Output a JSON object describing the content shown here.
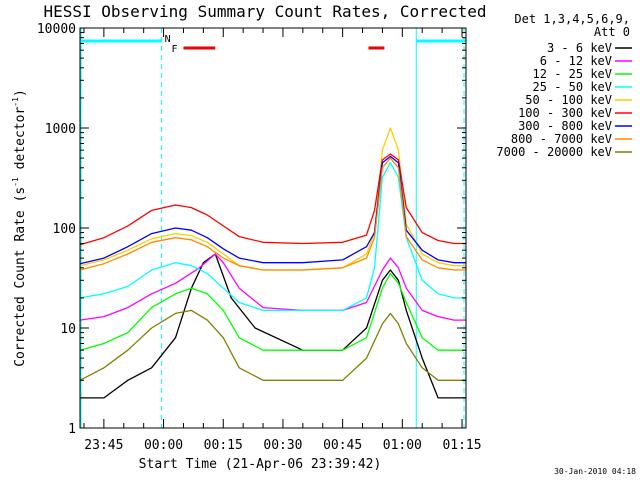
{
  "chart_data": {
    "type": "line",
    "title": "HESSI Observing Summary Count Rates, Corrected",
    "xlabel": "Start Time (21-Apr-06 23:39:42)",
    "ylabel_main": "Corrected Count Rate (s",
    "ylabel_sup1": "-1",
    "ylabel_mid": " detector",
    "ylabel_sup2": "-1",
    "ylabel_end": ")",
    "yscale": "log",
    "ylim": [
      1,
      10000
    ],
    "xlim": [
      -16,
      81
    ],
    "x_unit": "minutes after 23:55",
    "yticks": [
      {
        "v": 1,
        "label": "1"
      },
      {
        "v": 10,
        "label": "10"
      },
      {
        "v": 100,
        "label": "100"
      },
      {
        "v": 1000,
        "label": "1000"
      },
      {
        "v": 10000,
        "label": "10000"
      }
    ],
    "xticks": [
      {
        "v": -10,
        "label": "23:45"
      },
      {
        "v": 5,
        "label": "00:00"
      },
      {
        "v": 20,
        "label": "00:15"
      },
      {
        "v": 35,
        "label": "00:30"
      },
      {
        "v": 50,
        "label": "00:45"
      },
      {
        "v": 65,
        "label": "01:00"
      },
      {
        "v": 80,
        "label": "01:15"
      }
    ],
    "legend_header": [
      "Det 1,3,4,5,6,9,",
      "Att 0"
    ],
    "legend_position": "right",
    "series": [
      {
        "name": "3 - 6 keV",
        "color": "#000000",
        "x": [
          -16,
          -10,
          -4,
          2,
          8,
          12,
          15,
          18,
          22,
          28,
          40,
          50,
          56,
          60,
          62,
          64,
          66,
          70,
          74,
          78,
          81
        ],
        "y": [
          2,
          2,
          3,
          4,
          8,
          25,
          45,
          55,
          20,
          10,
          6,
          6,
          10,
          30,
          38,
          30,
          15,
          5,
          2,
          2,
          2
        ]
      },
      {
        "name": "6 - 12 keV",
        "color": "#ff00ff",
        "x": [
          -16,
          -10,
          -4,
          2,
          8,
          14,
          18,
          20,
          24,
          30,
          40,
          50,
          56,
          60,
          62,
          64,
          66,
          70,
          74,
          78,
          81
        ],
        "y": [
          12,
          13,
          16,
          22,
          28,
          40,
          55,
          45,
          25,
          16,
          15,
          15,
          18,
          38,
          50,
          40,
          25,
          15,
          13,
          12,
          12
        ]
      },
      {
        "name": "12 - 25 keV",
        "color": "#00ff00",
        "x": [
          -16,
          -10,
          -4,
          2,
          8,
          12,
          16,
          20,
          24,
          30,
          40,
          50,
          56,
          60,
          62,
          64,
          66,
          70,
          74,
          78,
          81
        ],
        "y": [
          6,
          7,
          9,
          16,
          22,
          25,
          22,
          15,
          8,
          6,
          6,
          6,
          8,
          25,
          35,
          28,
          18,
          8,
          6,
          6,
          6
        ]
      },
      {
        "name": "25 - 50 keV",
        "color": "#00ffff",
        "x": [
          -16,
          -10,
          -4,
          2,
          8,
          12,
          16,
          20,
          24,
          30,
          40,
          50,
          56,
          58,
          60,
          62,
          64,
          66,
          70,
          74,
          78,
          81
        ],
        "y": [
          20,
          22,
          26,
          38,
          45,
          42,
          35,
          25,
          18,
          15,
          15,
          15,
          20,
          40,
          320,
          450,
          320,
          80,
          30,
          22,
          20,
          20
        ]
      },
      {
        "name": "50 - 100 keV",
        "color": "#ffcc00",
        "x": [
          -16,
          -10,
          -4,
          2,
          8,
          12,
          16,
          20,
          24,
          30,
          40,
          50,
          56,
          58,
          60,
          62,
          64,
          66,
          70,
          74,
          78,
          81
        ],
        "y": [
          42,
          48,
          60,
          78,
          88,
          84,
          72,
          55,
          42,
          38,
          38,
          40,
          55,
          90,
          600,
          1000,
          600,
          110,
          55,
          45,
          42,
          42
        ]
      },
      {
        "name": "100 - 300 keV",
        "color": "#ff0000",
        "x": [
          -16,
          -10,
          -4,
          2,
          8,
          12,
          16,
          20,
          24,
          30,
          40,
          50,
          56,
          58,
          60,
          62,
          64,
          66,
          70,
          74,
          78,
          81
        ],
        "y": [
          68,
          80,
          105,
          150,
          170,
          160,
          135,
          105,
          82,
          72,
          70,
          72,
          85,
          150,
          480,
          550,
          480,
          160,
          90,
          75,
          70,
          70
        ]
      },
      {
        "name": "300 - 800 keV",
        "color": "#0000ff",
        "x": [
          -16,
          -10,
          -4,
          2,
          8,
          12,
          16,
          20,
          24,
          30,
          40,
          50,
          56,
          58,
          60,
          62,
          64,
          66,
          70,
          74,
          78,
          81
        ],
        "y": [
          44,
          50,
          65,
          88,
          100,
          95,
          80,
          62,
          50,
          45,
          45,
          48,
          65,
          90,
          450,
          520,
          450,
          95,
          60,
          48,
          45,
          45
        ]
      },
      {
        "name": "800 - 7000 keV",
        "color": "#ff8800",
        "x": [
          -16,
          -10,
          -4,
          2,
          8,
          12,
          16,
          20,
          24,
          30,
          40,
          50,
          56,
          58,
          60,
          62,
          64,
          66,
          70,
          74,
          78,
          81
        ],
        "y": [
          38,
          44,
          55,
          72,
          80,
          76,
          65,
          50,
          42,
          38,
          38,
          40,
          50,
          80,
          400,
          500,
          400,
          82,
          48,
          40,
          38,
          38
        ]
      },
      {
        "name": "7000 - 20000 keV",
        "color": "#808000",
        "x": [
          -16,
          -10,
          -4,
          2,
          8,
          12,
          16,
          20,
          24,
          30,
          40,
          50,
          56,
          60,
          62,
          64,
          66,
          70,
          74,
          78,
          81
        ],
        "y": [
          3,
          4,
          6,
          10,
          14,
          15,
          12,
          8,
          4,
          3,
          3,
          3,
          5,
          11,
          14,
          11,
          7,
          4,
          3,
          3,
          3
        ]
      }
    ],
    "flags": {
      "N_label": "N",
      "F_label": "F",
      "night_color": "#00ffff",
      "flare_color": "#ee0000",
      "night_segments": [
        [
          -16,
          4.5
        ],
        [
          68.5,
          81
        ]
      ],
      "night_dashed_x": [
        4.5,
        80.5
      ],
      "night_solid_x": [
        68.5
      ],
      "flare_segments": [
        [
          10,
          18
        ],
        [
          56.5,
          60.5
        ]
      ]
    },
    "timestamp": "30-Jan-2010 04:18"
  }
}
